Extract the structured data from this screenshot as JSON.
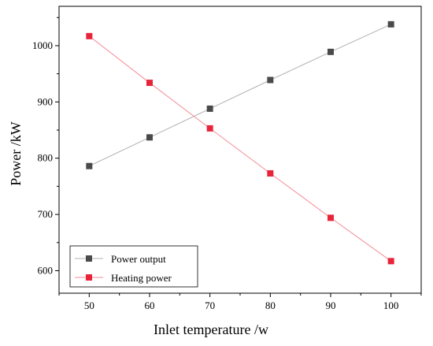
{
  "chart_data": {
    "type": "line",
    "x": [
      50,
      60,
      70,
      80,
      90,
      100
    ],
    "series": [
      {
        "name": "Power output",
        "values": [
          786,
          837,
          888,
          939,
          989,
          1038
        ],
        "color": "#4a4a4a",
        "line_color": "#b0b0b0"
      },
      {
        "name": "Heating power",
        "values": [
          1017,
          934,
          853,
          773,
          694,
          617
        ],
        "color": "#e8243a",
        "line_color": "#f48a96"
      }
    ],
    "xlabel": "Inlet temperature   /w",
    "ylabel": "Power   /kW",
    "xlim": [
      45,
      105
    ],
    "ylim": [
      560,
      1070
    ],
    "xticks": [
      "50",
      "60",
      "70",
      "80",
      "90",
      "100"
    ],
    "yticks": [
      "600",
      "700",
      "800",
      "900",
      "1000"
    ],
    "legend_position": "bottom-left",
    "grid": false
  }
}
